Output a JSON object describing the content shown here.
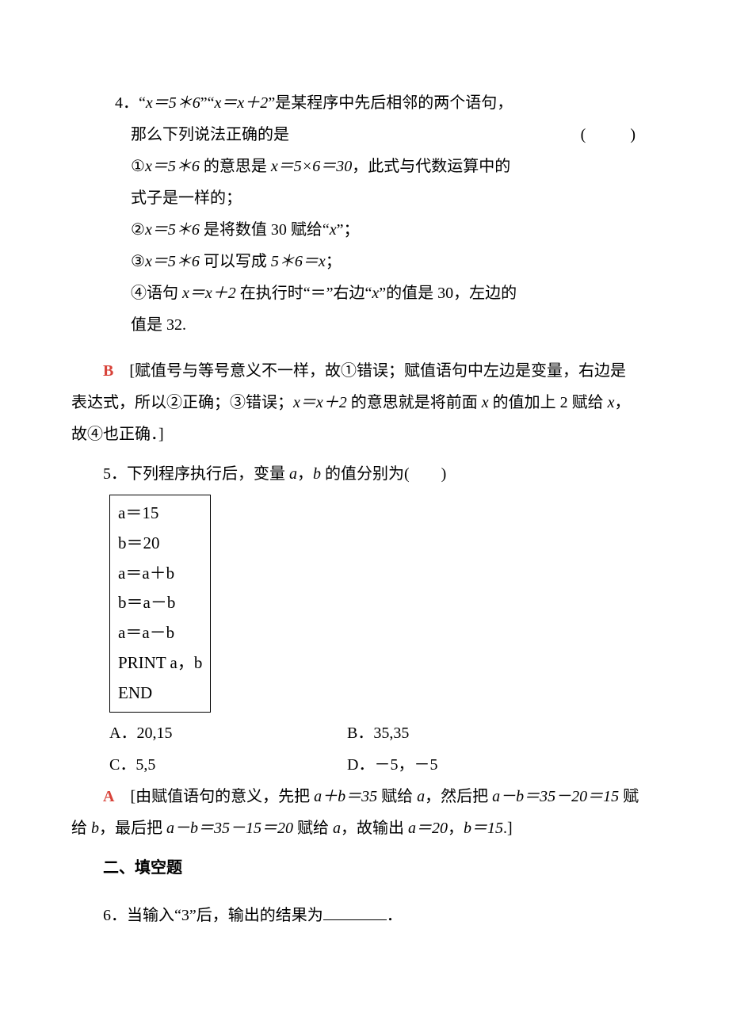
{
  "q4": {
    "number": "4",
    "stem_a": "．“",
    "expr1": "x＝5＊6",
    "stem_b": "”“",
    "expr2": "x＝x＋2",
    "stem_c": "”是某程序中先后相邻的两个语句，",
    "line2_pre": "那么下列说法正确的是",
    "brackets": "(　)",
    "opt1_pre": "①",
    "opt1_expr1": "x＝5＊6",
    "opt1_mid": " 的意思是 ",
    "opt1_expr2": "x＝5×6＝30",
    "opt1_post": "，此式与代数运算中的",
    "opt1_line2": "式子是一样的；",
    "opt2_pre": "②",
    "opt2_expr": "x＝5＊6",
    "opt2_post": " 是将数值 30 赋给“",
    "opt2_x": "x",
    "opt2_tail": "”；",
    "opt3_pre": "③",
    "opt3_expr1": "x＝5＊6",
    "opt3_mid": " 可以写成 ",
    "opt3_expr2": "5＊6＝x",
    "opt3_tail": "；",
    "opt4_pre": "④语句 ",
    "opt4_expr": "x＝x＋2",
    "opt4_mid": " 在执行时“＝”右边“",
    "opt4_x": "x",
    "opt4_post": "”的值是 30，左边的",
    "opt4_line2": "值是 32.",
    "answer_letter": "B",
    "explain_1": "　[赋值号与等号意义不一样，故①错误；赋值语句中左边是变量，右边是",
    "explain_2_a": "表达式，所以②正确；③错误；",
    "explain_2_expr": "x＝x＋2",
    "explain_2_b": " 的意思就是将前面 ",
    "explain_2_x": "x",
    "explain_2_c": " 的值加上 2 赋给 ",
    "explain_2_x2": "x",
    "explain_2_d": "，",
    "explain_3": "故④也正确．]"
  },
  "q5": {
    "stem_a": "5．下列程序执行后，变量 ",
    "a": "a",
    "comma": "，",
    "b": "b",
    "stem_b": " 的值分别为(　　)",
    "prog": [
      "a＝15",
      "b＝20",
      "a＝a＋b",
      "b＝a－b",
      "a＝a－b",
      "PRINT a，b",
      "END"
    ],
    "optA": "A．20,15",
    "optB": "B．35,35",
    "optC": "C．5,5",
    "optD": "D．－5，－5",
    "answer_letter": "A",
    "explain_a": "　[由赋值语句的意义，先把 ",
    "e1": "a＋b＝35",
    "explain_b": " 赋给 ",
    "ea": "a",
    "explain_c": "，然后把 ",
    "e2": "a－b＝35－20＝15",
    "explain_d": " 赋",
    "explain_line2_a": "给 ",
    "eb": "b",
    "explain_line2_b": "，最后把 ",
    "e3": "a－b＝35－15＝20",
    "explain_line2_c": " 赋给 ",
    "ea2": "a",
    "explain_line2_d": "，故输出 ",
    "e4": "a＝20",
    "explain_line2_e": "，",
    "e5": "b＝15",
    "explain_line2_f": ".]"
  },
  "section2": "二、填空题",
  "q6": {
    "stem": "6．当输入“3”后，输出的结果为",
    "tail": "．"
  }
}
